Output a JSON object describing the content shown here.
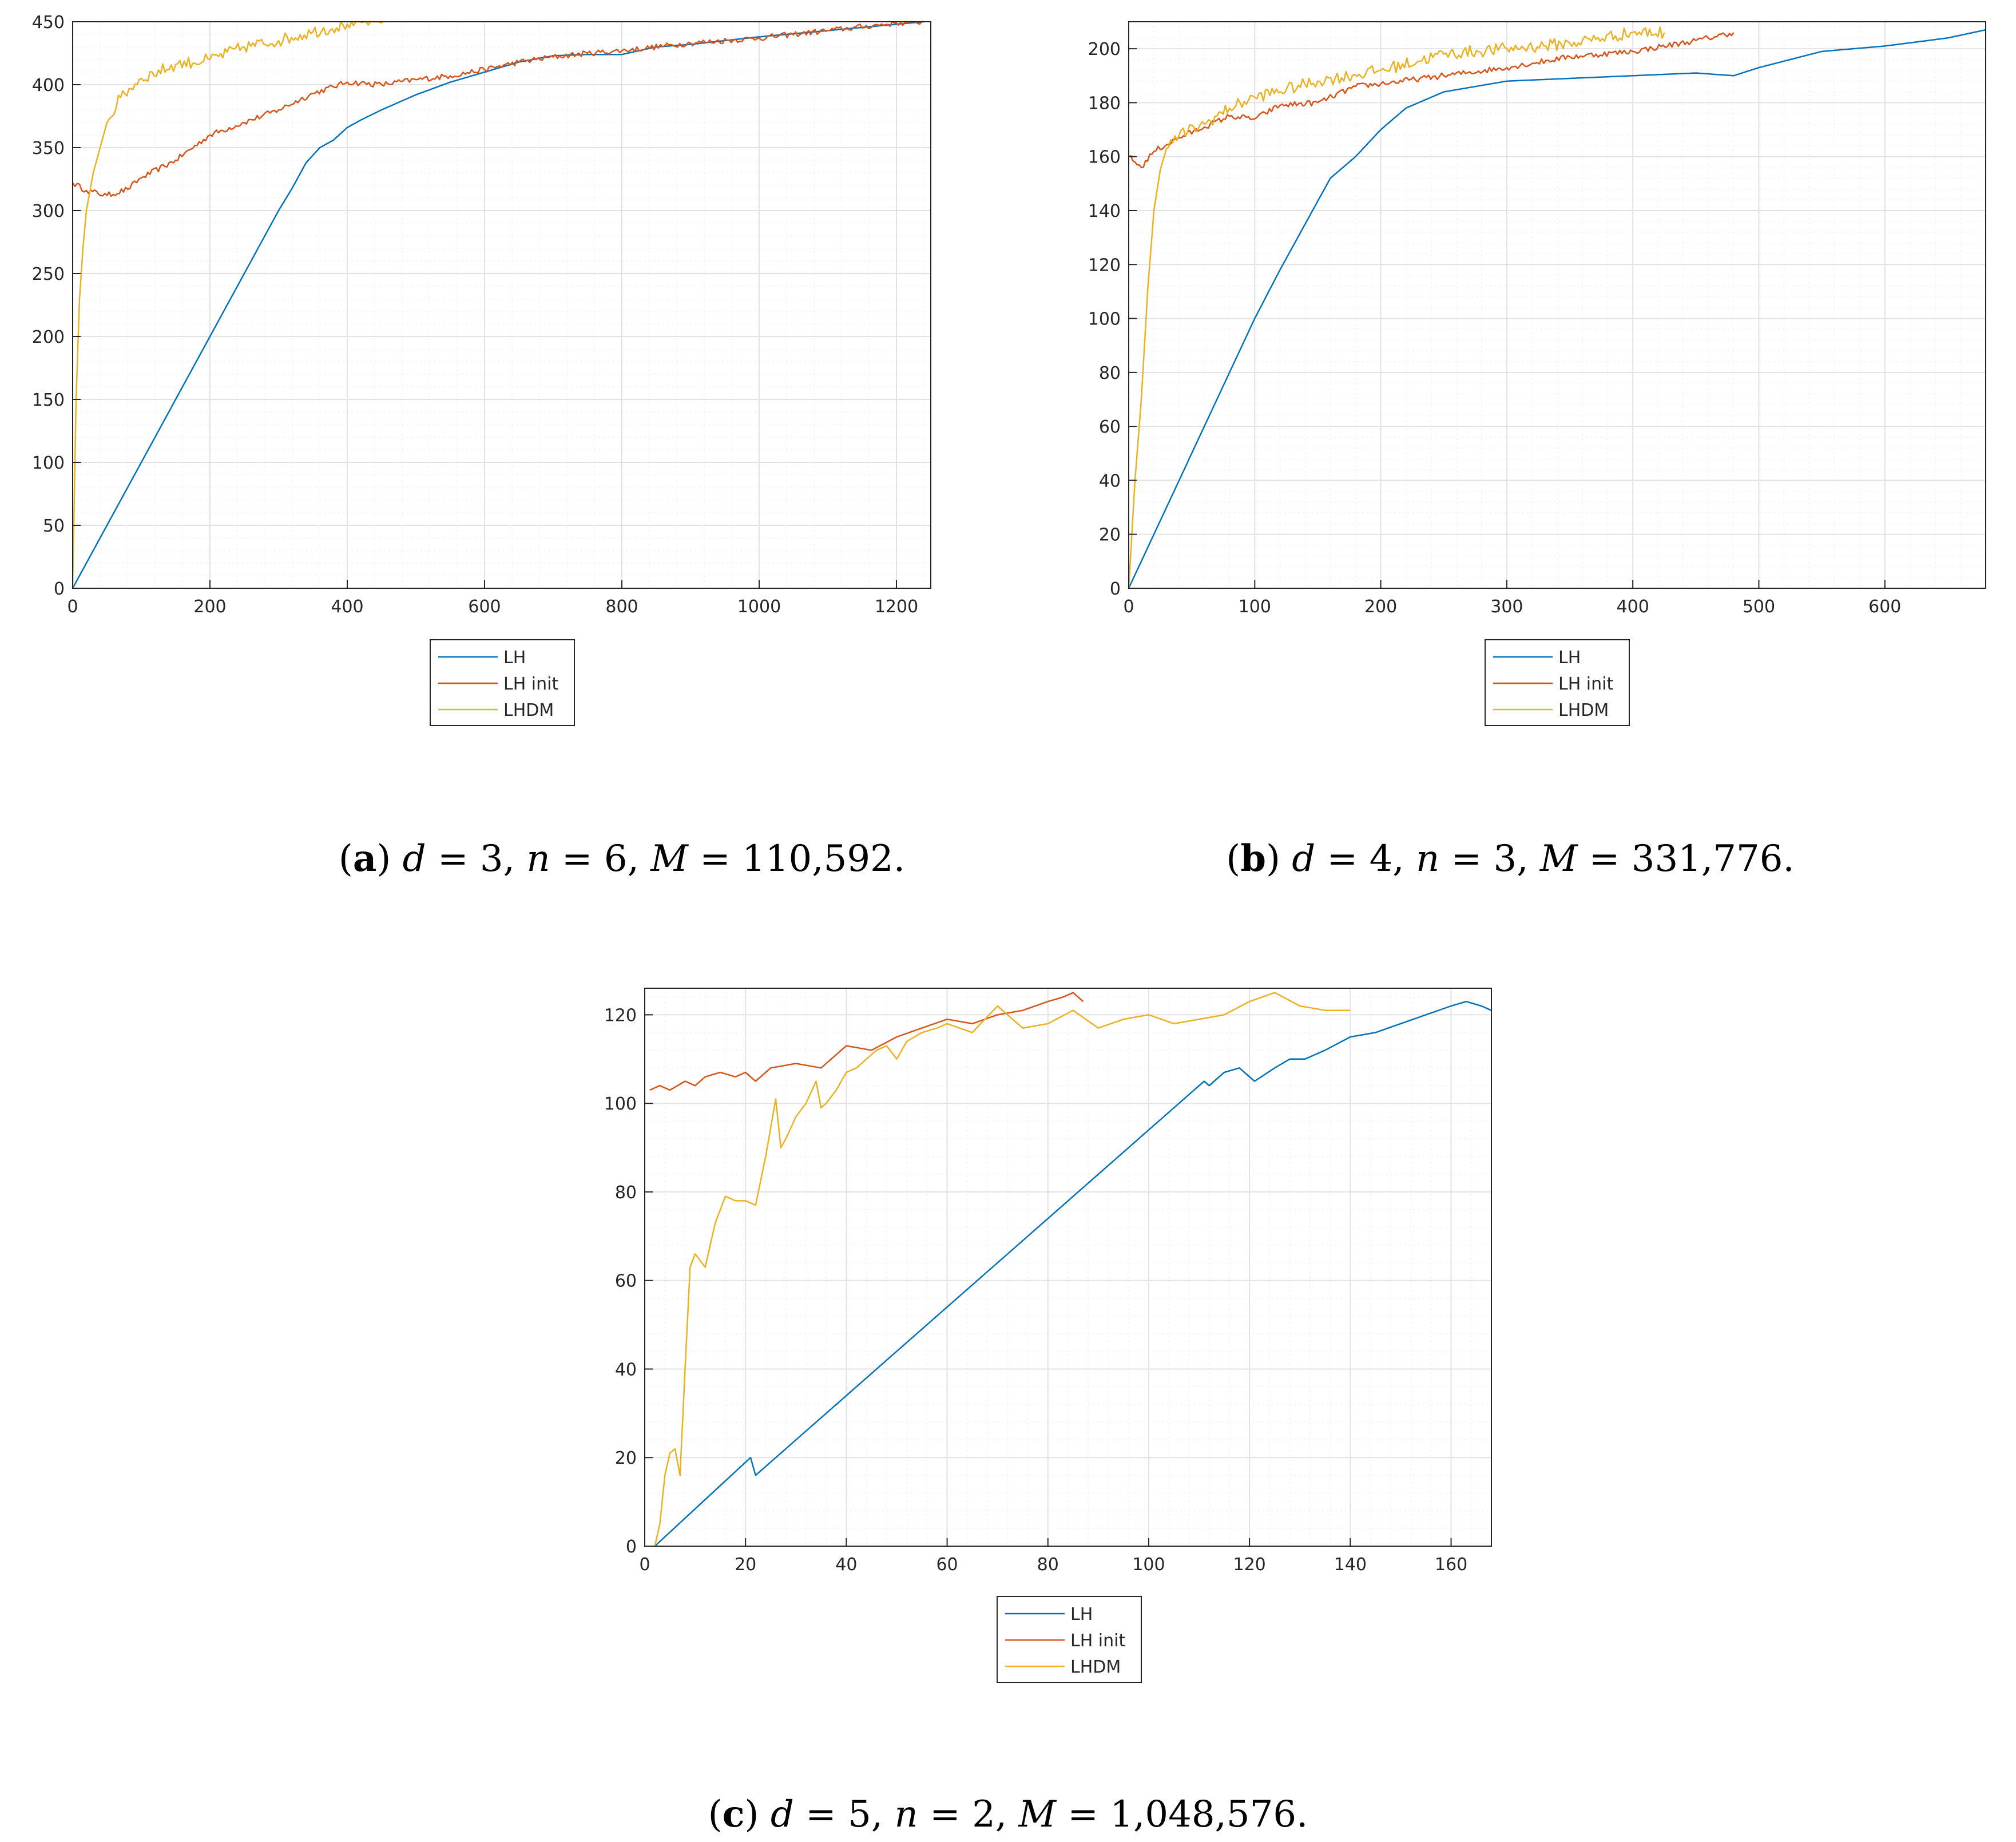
{
  "colors": {
    "LH": "#0072BD",
    "LH init": "#D95319",
    "LHDM": "#EDB120",
    "grid_major": "#e2e2e2",
    "grid_minor": "#efefef",
    "axis": "#262626"
  },
  "chart_data": [
    {
      "type": "line",
      "id": "a",
      "caption": {
        "label": "a",
        "params": [
          {
            "var": "d",
            "val": "3"
          },
          {
            "var": "n",
            "val": "6"
          },
          {
            "var": "M",
            "val": "110,592"
          }
        ]
      },
      "xlim": [
        0,
        1250
      ],
      "ylim": [
        0,
        450
      ],
      "xticks": [
        0,
        200,
        400,
        600,
        800,
        1000,
        1200
      ],
      "yticks": [
        0,
        50,
        100,
        150,
        200,
        250,
        300,
        350,
        400,
        450
      ],
      "grid": true,
      "legend": {
        "position": "below",
        "entries": [
          "LH",
          "LH init",
          "LHDM"
        ]
      },
      "series": [
        {
          "name": "LH",
          "x": [
            0,
            50,
            100,
            150,
            200,
            250,
            280,
            300,
            320,
            340,
            360,
            380,
            400,
            420,
            450,
            500,
            550,
            600,
            650,
            700,
            750,
            800,
            850,
            900,
            1000,
            1100,
            1200,
            1240
          ],
          "y": [
            0,
            50,
            100,
            150,
            200,
            250,
            280,
            300,
            318,
            338,
            350,
            356,
            366,
            372,
            380,
            392,
            402,
            410,
            418,
            423,
            424,
            424,
            430,
            432,
            438,
            443,
            448,
            450
          ]
        },
        {
          "name": "LH init",
          "x": [
            0,
            20,
            50,
            80,
            100,
            150,
            200,
            250,
            300,
            350,
            400,
            450,
            500,
            550,
            600,
            650,
            700,
            750,
            800,
            900,
            1000,
            1100,
            1200,
            1240
          ],
          "y": [
            322,
            316,
            312,
            317,
            326,
            340,
            360,
            370,
            380,
            393,
            402,
            400,
            404,
            407,
            412,
            418,
            422,
            425,
            427,
            433,
            437,
            443,
            449,
            450
          ]
        },
        {
          "name": "LHDM",
          "x": [
            0,
            5,
            10,
            15,
            20,
            30,
            40,
            50,
            70,
            100,
            150,
            200,
            250,
            300,
            350,
            400,
            455
          ],
          "y": [
            0,
            150,
            230,
            270,
            300,
            330,
            350,
            370,
            390,
            405,
            416,
            420,
            430,
            435,
            442,
            448,
            453
          ]
        }
      ]
    },
    {
      "type": "line",
      "id": "b",
      "caption": {
        "label": "b",
        "params": [
          {
            "var": "d",
            "val": "4"
          },
          {
            "var": "n",
            "val": "3"
          },
          {
            "var": "M",
            "val": "331,776"
          }
        ]
      },
      "xlim": [
        0,
        680
      ],
      "ylim": [
        0,
        210
      ],
      "xticks": [
        0,
        100,
        200,
        300,
        400,
        500,
        600
      ],
      "yticks": [
        0,
        20,
        40,
        60,
        80,
        100,
        120,
        140,
        160,
        180,
        200
      ],
      "grid": true,
      "legend": {
        "position": "below",
        "entries": [
          "LH",
          "LH init",
          "LHDM"
        ]
      },
      "series": [
        {
          "name": "LH",
          "x": [
            0,
            50,
            100,
            120,
            140,
            160,
            180,
            200,
            220,
            250,
            300,
            350,
            400,
            450,
            480,
            500,
            550,
            600,
            650,
            680
          ],
          "y": [
            0,
            50,
            100,
            118,
            135,
            152,
            160,
            170,
            178,
            184,
            188,
            189,
            190,
            191,
            190,
            193,
            199,
            201,
            204,
            207
          ]
        },
        {
          "name": "LH init",
          "x": [
            0,
            10,
            20,
            40,
            60,
            80,
            100,
            120,
            150,
            180,
            200,
            250,
            300,
            350,
            400,
            450,
            480
          ],
          "y": [
            160,
            156,
            162,
            167,
            171,
            175,
            174,
            179,
            180,
            186,
            187,
            190,
            193,
            197,
            199,
            203,
            206
          ]
        },
        {
          "name": "LHDM",
          "x": [
            0,
            5,
            10,
            15,
            20,
            25,
            30,
            40,
            60,
            80,
            100,
            150,
            200,
            250,
            300,
            350,
            400,
            425
          ],
          "y": [
            0,
            40,
            70,
            110,
            140,
            155,
            163,
            168,
            172,
            178,
            182,
            188,
            192,
            198,
            200,
            202,
            206,
            206
          ]
        }
      ]
    },
    {
      "type": "line",
      "id": "c",
      "caption": {
        "label": "c",
        "params": [
          {
            "var": "d",
            "val": "5"
          },
          {
            "var": "n",
            "val": "2"
          },
          {
            "var": "M",
            "val": "1,048,576"
          }
        ]
      },
      "xlim": [
        0,
        168
      ],
      "ylim": [
        0,
        126
      ],
      "xticks": [
        0,
        20,
        40,
        60,
        80,
        100,
        120,
        140,
        160
      ],
      "yticks": [
        0,
        20,
        40,
        60,
        80,
        100,
        120
      ],
      "grid": true,
      "legend": {
        "position": "below",
        "entries": [
          "LH",
          "LH init",
          "LHDM"
        ]
      },
      "series": [
        {
          "name": "LH",
          "x": [
            2,
            21,
            22,
            40,
            60,
            80,
            100,
            111,
            112,
            115,
            118,
            121,
            125,
            128,
            131,
            135,
            140,
            145,
            150,
            155,
            160,
            163,
            166,
            168
          ],
          "y": [
            0,
            20,
            16,
            34,
            54,
            74,
            94,
            105,
            104,
            107,
            108,
            105,
            108,
            110,
            110,
            112,
            115,
            116,
            118,
            120,
            122,
            123,
            122,
            121
          ]
        },
        {
          "name": "LH init",
          "x": [
            1,
            3,
            5,
            8,
            10,
            12,
            15,
            18,
            20,
            22,
            25,
            30,
            35,
            40,
            45,
            50,
            55,
            60,
            65,
            70,
            75,
            80,
            83,
            85,
            87
          ],
          "y": [
            103,
            104,
            103,
            105,
            104,
            106,
            107,
            106,
            107,
            105,
            108,
            109,
            108,
            113,
            112,
            115,
            117,
            119,
            118,
            120,
            121,
            123,
            124,
            125,
            123
          ]
        },
        {
          "name": "LHDM",
          "x": [
            2,
            3,
            4,
            5,
            6,
            7,
            8,
            9,
            10,
            12,
            14,
            16,
            18,
            20,
            22,
            24,
            26,
            27,
            28,
            30,
            32,
            34,
            35,
            36,
            38,
            40,
            42,
            44,
            46,
            48,
            50,
            52,
            55,
            58,
            60,
            65,
            70,
            75,
            80,
            85,
            90,
            95,
            100,
            105,
            110,
            115,
            120,
            125,
            130,
            135,
            140
          ],
          "y": [
            0,
            5,
            16,
            21,
            22,
            16,
            40,
            63,
            66,
            63,
            73,
            79,
            78,
            78,
            77,
            88,
            101,
            90,
            92,
            97,
            100,
            105,
            99,
            100,
            103,
            107,
            108,
            110,
            112,
            113,
            110,
            114,
            116,
            117,
            118,
            116,
            122,
            117,
            118,
            121,
            117,
            119,
            120,
            118,
            119,
            120,
            123,
            125,
            122,
            121,
            121
          ]
        }
      ]
    }
  ]
}
